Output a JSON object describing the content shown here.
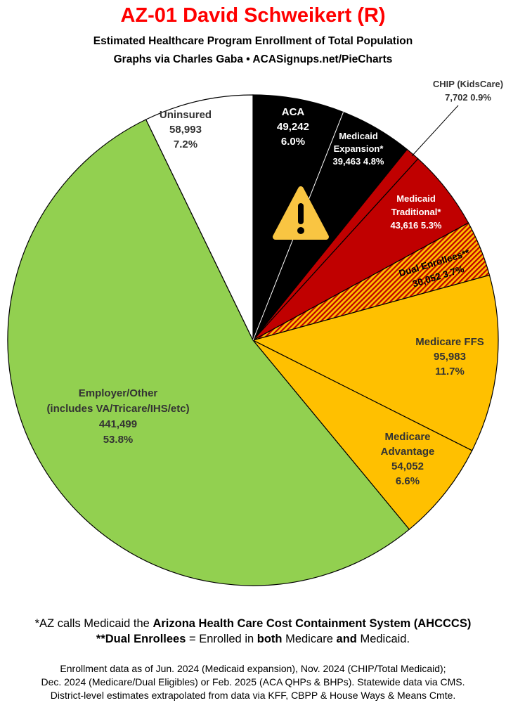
{
  "header": {
    "title": "AZ-01 David Schweikert (R)",
    "subtitle": "Estimated Healthcare Program Enrollment of Total Population",
    "credit": "Graphs via Charles Gaba  •  ACASignups.net/PieCharts"
  },
  "chart_data": {
    "type": "pie",
    "title": "AZ-01 David Schweikert (R)",
    "start": "12 o'clock, clockwise",
    "slices": [
      {
        "name": "ACA",
        "value": 49242,
        "percent": 6.0,
        "color": "#000000",
        "label_lines": [
          "ACA",
          "49,242",
          "6.0%"
        ]
      },
      {
        "name": "Medicaid Expansion*",
        "value": 39463,
        "percent": 4.8,
        "color": "#000000",
        "label_lines": [
          "Medicaid",
          "Expansion*",
          "39,463 4.8%"
        ]
      },
      {
        "name": "CHIP (KidsCare)",
        "value": 7702,
        "percent": 0.9,
        "color": "#c00000",
        "label_lines": [
          "CHIP (KidsCare)",
          "7,702 0.9%"
        ]
      },
      {
        "name": "Medicaid Traditional*",
        "value": 43616,
        "percent": 5.3,
        "color": "#c00000",
        "label_lines": [
          "Medicaid",
          "Traditional*",
          "43,616 5.3%"
        ]
      },
      {
        "name": "Dual Enrollees**",
        "value": 30052,
        "percent": 3.7,
        "color": "hatched #c00000/#ffc000",
        "label_lines": [
          "Dual Enrollees**",
          "30,052 3.7%"
        ]
      },
      {
        "name": "Medicare FFS",
        "value": 95983,
        "percent": 11.7,
        "color": "#ffc000",
        "label_lines": [
          "Medicare FFS",
          "95,983",
          "11.7%"
        ]
      },
      {
        "name": "Medicare Advantage",
        "value": 54052,
        "percent": 6.6,
        "color": "#ffc000",
        "label_lines": [
          "Medicare",
          "Advantage",
          "54,052",
          "6.6%"
        ]
      },
      {
        "name": "Employer/Other (includes VA/Tricare/IHS/etc)",
        "value": 441499,
        "percent": 53.8,
        "color": "#92d050",
        "label_lines": [
          "Employer/Other",
          "(includes VA/Tricare/IHS/etc)",
          "441,499",
          "53.8%"
        ]
      },
      {
        "name": "Uninsured",
        "value": 58993,
        "percent": 7.2,
        "color": "#ffffff",
        "label_lines": [
          "Uninsured",
          "58,993",
          "7.2%"
        ]
      }
    ],
    "icons": [
      "warning-icon on ACA slice"
    ]
  },
  "footer": {
    "note1_pre": "*AZ calls Medicaid the ",
    "note1_bold": "Arizona Health Care Cost Containment System (AHCCCS)",
    "note2_bold1": "**Dual Enrollees",
    "note2_mid1": " = Enrolled in ",
    "note2_bold2": "both",
    "note2_mid2": " Medicare ",
    "note2_bold3": "and",
    "note2_end": " Medicaid.",
    "source1": "Enrollment data as of Jun. 2024 (Medicaid expansion), Nov. 2024 (CHIP/Total Medicaid);",
    "source2": "Dec. 2024 (Medicare/Dual Eligibles) or Feb. 2025 (ACA QHPs & BHPs). Statewide data via CMS.",
    "source3": "District-level estimates extrapolated from data via KFF, CBPP & House Ways & Means Cmte."
  }
}
